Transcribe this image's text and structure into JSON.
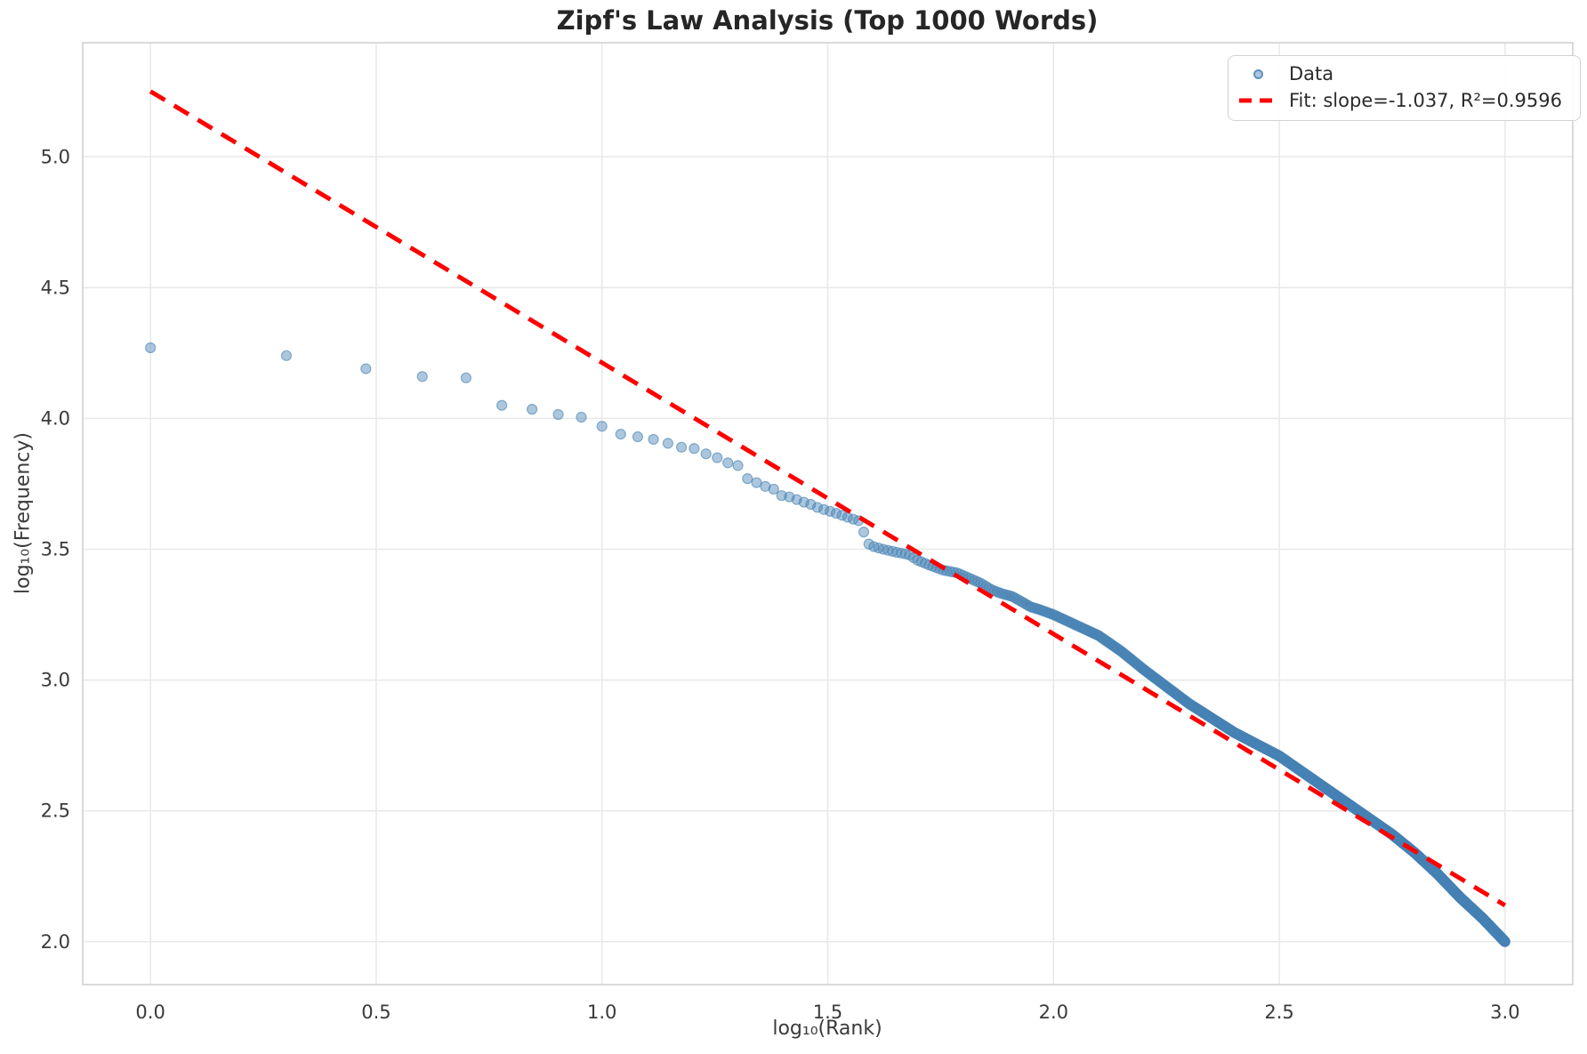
{
  "title": "Zipf's Law Analysis (Top 1000 Words)",
  "axes": {
    "xlabel": "log₁₀(Rank)",
    "ylabel": "log₁₀(Frequency)"
  },
  "legend": {
    "position": "upper right",
    "items": [
      {
        "label": "Data",
        "marker": "circle",
        "color": "#4682b4"
      },
      {
        "label": "Fit: slope=-1.037, R²=0.9596",
        "marker": "dashed-line",
        "color": "#ff0000"
      }
    ]
  },
  "chart_data": {
    "type": "scatter",
    "title": "Zipf's Law Analysis (Top 1000 Words)",
    "xlabel": "log₁₀(Rank)",
    "ylabel": "log₁₀(Frequency)",
    "xlim": [
      -0.15,
      3.15
    ],
    "ylim": [
      1.836,
      5.436
    ],
    "grid": true,
    "legend_position": "upper right",
    "x_ticks": {
      "values": [
        0.0,
        0.5,
        1.0,
        1.5,
        2.0,
        2.5,
        3.0
      ],
      "labels": [
        "0.0",
        "0.5",
        "1.0",
        "1.5",
        "2.0",
        "2.5",
        "3.0"
      ]
    },
    "y_ticks": {
      "values": [
        2.0,
        2.5,
        3.0,
        3.5,
        4.0,
        4.5,
        5.0
      ],
      "labels": [
        "2.0",
        "2.5",
        "3.0",
        "3.5",
        "4.0",
        "4.5",
        "5.0"
      ]
    },
    "series": [
      {
        "name": "Data",
        "type": "scatter",
        "marker": "circle",
        "color": "#4682b4",
        "opacity": 0.45,
        "n_points": 1000,
        "x_definition": "x = log10(rank) for rank = 1..1000",
        "curve_points": [
          [
            0.0,
            4.27
          ],
          [
            0.301,
            4.24
          ],
          [
            0.477,
            4.19
          ],
          [
            0.602,
            4.16
          ],
          [
            0.699,
            4.155
          ],
          [
            0.778,
            4.05
          ],
          [
            0.845,
            4.035
          ],
          [
            0.903,
            4.015
          ],
          [
            0.954,
            4.005
          ],
          [
            1.0,
            3.97
          ],
          [
            1.041,
            3.94
          ],
          [
            1.079,
            3.93
          ],
          [
            1.114,
            3.92
          ],
          [
            1.146,
            3.905
          ],
          [
            1.176,
            3.89
          ],
          [
            1.204,
            3.885
          ],
          [
            1.23,
            3.865
          ],
          [
            1.255,
            3.85
          ],
          [
            1.279,
            3.83
          ],
          [
            1.301,
            3.82
          ],
          [
            1.322,
            3.77
          ],
          [
            1.342,
            3.755
          ],
          [
            1.362,
            3.74
          ],
          [
            1.38,
            3.73
          ],
          [
            1.398,
            3.705
          ],
          [
            1.415,
            3.7
          ],
          [
            1.431,
            3.69
          ],
          [
            1.447,
            3.68
          ],
          [
            1.462,
            3.672
          ],
          [
            1.477,
            3.66
          ],
          [
            1.491,
            3.652
          ],
          [
            1.505,
            3.645
          ],
          [
            1.531,
            3.63
          ],
          [
            1.556,
            3.615
          ],
          [
            1.568,
            3.61
          ],
          [
            1.58,
            3.565
          ],
          [
            1.591,
            3.52
          ],
          [
            1.602,
            3.51
          ],
          [
            1.623,
            3.5
          ],
          [
            1.653,
            3.488
          ],
          [
            1.679,
            3.48
          ],
          [
            1.699,
            3.458
          ],
          [
            1.724,
            3.44
          ],
          [
            1.756,
            3.42
          ],
          [
            1.786,
            3.41
          ],
          [
            1.813,
            3.39
          ],
          [
            1.839,
            3.37
          ],
          [
            1.863,
            3.345
          ],
          [
            1.886,
            3.33
          ],
          [
            1.908,
            3.32
          ],
          [
            1.929,
            3.3
          ],
          [
            1.949,
            3.28
          ],
          [
            1.968,
            3.27
          ],
          [
            2.0,
            3.25
          ],
          [
            2.05,
            3.21
          ],
          [
            2.1,
            3.17
          ],
          [
            2.15,
            3.11
          ],
          [
            2.2,
            3.04
          ],
          [
            2.25,
            2.975
          ],
          [
            2.3,
            2.91
          ],
          [
            2.35,
            2.855
          ],
          [
            2.4,
            2.8
          ],
          [
            2.45,
            2.755
          ],
          [
            2.5,
            2.71
          ],
          [
            2.55,
            2.65
          ],
          [
            2.6,
            2.59
          ],
          [
            2.65,
            2.53
          ],
          [
            2.7,
            2.47
          ],
          [
            2.75,
            2.41
          ],
          [
            2.8,
            2.34
          ],
          [
            2.85,
            2.26
          ],
          [
            2.9,
            2.17
          ],
          [
            2.95,
            2.09
          ],
          [
            3.0,
            2.0
          ]
        ]
      },
      {
        "name": "Fit: slope=-1.037, R²=0.9596",
        "type": "line",
        "style": "dashed",
        "color": "#ff0000",
        "slope": -1.037,
        "intercept": 5.25,
        "r_squared": 0.9596,
        "x_range": [
          0.0,
          3.0
        ]
      }
    ]
  },
  "colors": {
    "scatter": "#4682b4",
    "fit_line": "#ff0000",
    "grid": "#e8e8e8",
    "frame": "#cdcdcd",
    "text": "#3a3a3a",
    "title_text": "#262626",
    "background": "#ffffff"
  }
}
